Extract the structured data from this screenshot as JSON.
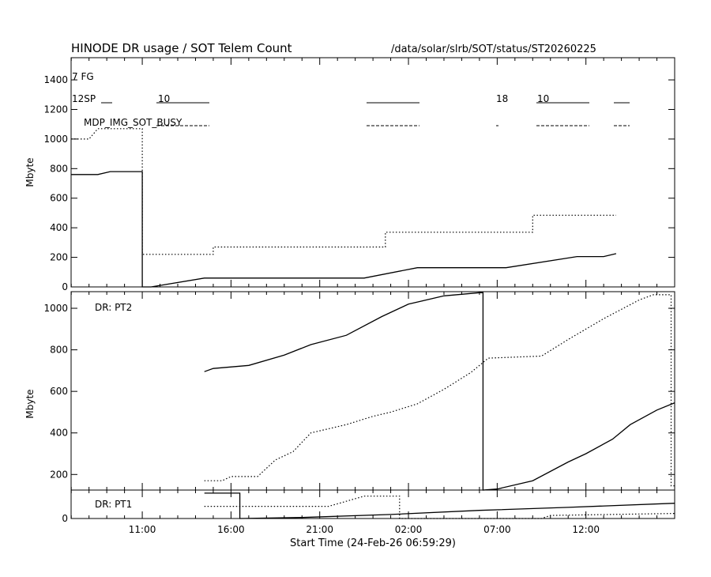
{
  "header": {
    "title": "HINODE DR usage / SOT Telem Count",
    "path": "/data/solar/slrb/SOT/status/ST20260225"
  },
  "chart_data": [
    {
      "type": "line",
      "panel": "top",
      "ylabel": "Mbyte",
      "ylim": [
        0,
        1550
      ],
      "yticks": [
        0,
        200,
        400,
        600,
        800,
        1000,
        1200,
        1400
      ],
      "annotations": {
        "fg_label": "7 FG",
        "sp_label": "12SP",
        "busy_label": "MDP_IMG_SOT_BUSY",
        "sp_value_1": "10",
        "sp_value_2": "18",
        "sp_value_3": "10"
      },
      "series": [
        {
          "style": "solid",
          "points": [
            [
              6.99,
              760
            ],
            [
              8.5,
              760
            ],
            [
              9.2,
              780
            ],
            [
              11.0,
              780
            ],
            [
              11.0,
              0
            ],
            [
              11.5,
              0
            ],
            [
              14.5,
              60
            ],
            [
              23.5,
              60
            ],
            [
              26.5,
              130
            ],
            [
              31.5,
              130
            ],
            [
              35.5,
              205
            ],
            [
              37.0,
              205
            ],
            [
              37.7,
              225
            ]
          ]
        },
        {
          "style": "dotted",
          "points": [
            [
              6.99,
              1000
            ],
            [
              8.0,
              1000
            ],
            [
              8.5,
              1070
            ],
            [
              11.0,
              1070
            ],
            [
              11.0,
              220
            ],
            [
              15.0,
              220
            ],
            [
              15.0,
              270
            ],
            [
              24.7,
              270
            ],
            [
              24.7,
              370
            ],
            [
              33.0,
              370
            ],
            [
              33.0,
              485
            ],
            [
              37.7,
              485
            ]
          ]
        }
      ]
    },
    {
      "type": "line",
      "panel": "middle",
      "label": "DR: PT2",
      "ylabel": "Mbyte",
      "ylim": [
        125,
        1080
      ],
      "yticks": [
        200,
        400,
        600,
        800,
        1000
      ],
      "series": [
        {
          "style": "solid",
          "points": [
            [
              14.5,
              695
            ],
            [
              15.0,
              710
            ],
            [
              17.0,
              725
            ],
            [
              19.0,
              775
            ],
            [
              20.5,
              825
            ],
            [
              22.5,
              870
            ],
            [
              24.5,
              960
            ],
            [
              26.0,
              1020
            ],
            [
              28.0,
              1060
            ],
            [
              30.0,
              1075
            ],
            [
              30.2,
              1075
            ],
            [
              30.2,
              125
            ],
            [
              31.0,
              130
            ],
            [
              33.0,
              170
            ],
            [
              35.0,
              260
            ],
            [
              36.0,
              300
            ],
            [
              37.5,
              370
            ],
            [
              38.5,
              440
            ],
            [
              40.0,
              510
            ],
            [
              41.0,
              545
            ]
          ]
        },
        {
          "style": "dotted",
          "points": [
            [
              14.5,
              170
            ],
            [
              15.5,
              170
            ],
            [
              16.0,
              190
            ],
            [
              17.5,
              190
            ],
            [
              18.5,
              270
            ],
            [
              19.5,
              310
            ],
            [
              20.5,
              400
            ],
            [
              22.5,
              440
            ],
            [
              24.0,
              480
            ],
            [
              25.0,
              500
            ],
            [
              26.5,
              540
            ],
            [
              28.0,
              610
            ],
            [
              29.5,
              690
            ],
            [
              30.5,
              760
            ],
            [
              33.5,
              770
            ],
            [
              35.0,
              850
            ],
            [
              37.0,
              950
            ],
            [
              39.0,
              1040
            ],
            [
              39.8,
              1065
            ],
            [
              40.8,
              1065
            ],
            [
              40.8,
              145
            ],
            [
              41.0,
              145
            ]
          ]
        }
      ]
    },
    {
      "type": "line",
      "panel": "bottom",
      "label": "DR: PT1",
      "xlabel": "Start Time (24-Feb-26 06:59:29)",
      "xlim": [
        6.99,
        41.0
      ],
      "xticks": [
        "11:00",
        "16:00",
        "21:00",
        "02:00",
        "07:00",
        "12:00"
      ],
      "yticks": [
        0
      ],
      "series": [
        {
          "style": "solid",
          "points": [
            [
              14.5,
              125
            ],
            [
              16.5,
              125
            ],
            [
              16.5,
              0
            ],
            [
              20.0,
              5
            ],
            [
              25.0,
              20
            ],
            [
              30.0,
              40
            ],
            [
              35.0,
              55
            ],
            [
              41.0,
              75
            ]
          ]
        },
        {
          "style": "dotted",
          "points": [
            [
              14.5,
              60
            ],
            [
              21.5,
              60
            ],
            [
              23.5,
              110
            ],
            [
              25.5,
              110
            ],
            [
              25.5,
              0
            ],
            [
              33.5,
              0
            ],
            [
              34.0,
              15
            ],
            [
              41.0,
              25
            ]
          ]
        }
      ]
    }
  ]
}
